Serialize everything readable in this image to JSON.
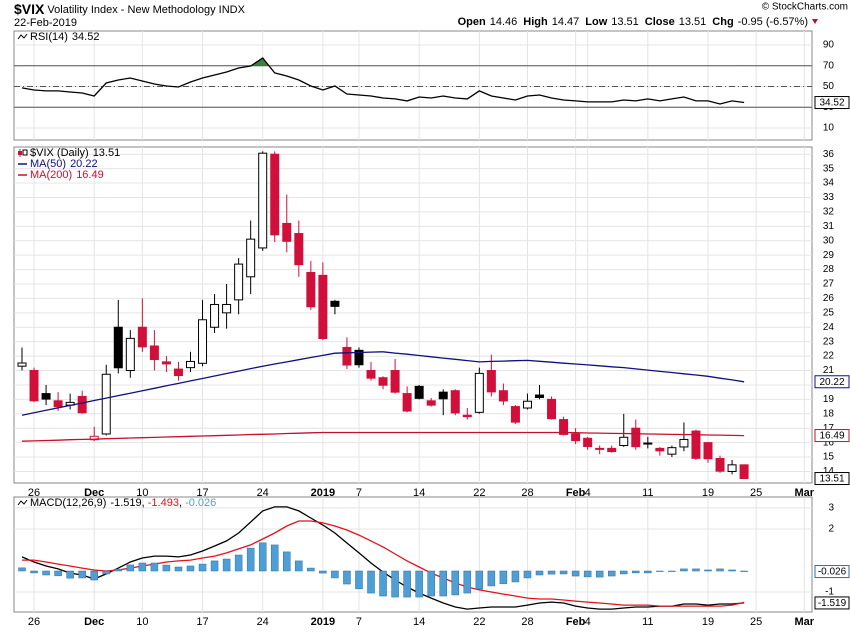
{
  "header": {
    "symbol": "$VIX",
    "name": "Volatility Index - New Methodology",
    "exchange": "INDX",
    "date": "22-Feb-2019",
    "copyright": "© StockCharts.com",
    "quote": [
      {
        "label": "Open",
        "value": "14.46"
      },
      {
        "label": "High",
        "value": "14.47"
      },
      {
        "label": "Low",
        "value": "13.51"
      },
      {
        "label": "Close",
        "value": "13.51"
      },
      {
        "label": "Chg",
        "value": "-0.95 (-6.57%)"
      }
    ]
  },
  "chart_data": [
    {
      "type": "line",
      "ylim": [
        -1.6,
        103.5
      ],
      "yticks": [
        10,
        30,
        50,
        70,
        90
      ],
      "grid": true,
      "reference_lines": [
        {
          "value": 70,
          "dash": "solid"
        },
        {
          "value": 50,
          "dash": "dashdot"
        },
        {
          "value": 30,
          "dash": "solid"
        }
      ],
      "overbought_fill": "#3e7f3e",
      "series": [
        {
          "name": "RSI(14)",
          "color": "#000000",
          "last_value_box": true,
          "values": [
            48.6,
            46.6,
            45.7,
            45.7,
            44.7,
            43.7,
            40.8,
            53.4,
            56.3,
            58.2,
            55.3,
            52.4,
            50.5,
            49.5,
            54.3,
            58.2,
            61.1,
            64.0,
            67.8,
            69.8,
            77.5,
            63.1,
            60.1,
            56.3,
            50.5,
            46.6,
            50.5,
            42.8,
            41.8,
            40.8,
            38.9,
            38.0,
            36.1,
            39.9,
            38.9,
            40.8,
            38.9,
            38.0,
            45.7,
            40.8,
            38.9,
            37.0,
            40.8,
            41.8,
            38.9,
            37.0,
            36.1,
            35.1,
            35.1,
            35.1,
            37.0,
            36.1,
            38.0,
            36.1,
            38.0,
            39.9,
            36.1,
            36.1,
            33.1,
            36.1,
            34.52
          ]
        }
      ]
    },
    {
      "type": "candlestick",
      "ylim": [
        13.2,
        36.5
      ],
      "yticks": [
        14,
        15,
        16,
        17,
        18,
        19,
        20,
        21,
        22,
        23,
        24,
        25,
        26,
        27,
        28,
        29,
        30,
        31,
        32,
        33,
        34,
        35,
        36
      ],
      "grid": true,
      "up_color": "#000000",
      "down_color": "#d0103a",
      "categories": [
        null,
        "26",
        null,
        null,
        null,
        null,
        "Dec",
        null,
        null,
        null,
        "10",
        null,
        null,
        null,
        null,
        "17",
        null,
        null,
        null,
        null,
        "24",
        null,
        null,
        null,
        null,
        "2019",
        null,
        null,
        "7",
        null,
        null,
        null,
        null,
        "14",
        null,
        null,
        null,
        null,
        "22",
        null,
        null,
        null,
        "28",
        null,
        null,
        null,
        "Feb",
        "4",
        null,
        null,
        null,
        null,
        "11",
        null,
        null,
        null,
        null,
        "19",
        null,
        null,
        null,
        "25",
        null,
        null,
        null,
        "Mar"
      ],
      "series": [
        {
          "name": "$VIX (Daily)",
          "color": "#000000",
          "last_value_box": true,
          "open": [
            21.3,
            21,
            19.4,
            18.9,
            18.6,
            19.2,
            16.2,
            16.6,
            24,
            21,
            24,
            22.7,
            21.6,
            21.1,
            21.2,
            21.5,
            24,
            25,
            25.9,
            27.5,
            29.5,
            36,
            31.2,
            30.5,
            27.8,
            27.6,
            25.8,
            22.6,
            22.4,
            21,
            20.5,
            21,
            19.4,
            19.9,
            18.9,
            19.5,
            19.6,
            17.9,
            18.1,
            21,
            19.6,
            18.5,
            18.4,
            19.3,
            19,
            17.6,
            16.6,
            16.3,
            15.6,
            15.6,
            15.8,
            17,
            15.9,
            15.6,
            15.2,
            15.7,
            16.8,
            16,
            14.9,
            14,
            14.46,
            null,
            null,
            null,
            null,
            null
          ],
          "high": [
            22.6,
            21.2,
            20,
            19.5,
            19.4,
            19.6,
            17.1,
            21.4,
            25.9,
            23.8,
            26,
            23.8,
            22,
            21.6,
            22.3,
            25.9,
            26.3,
            27,
            28.8,
            31.4,
            36.2,
            36.2,
            33.2,
            31.4,
            28.6,
            28.5,
            25.9,
            23.3,
            22.6,
            21.6,
            20.6,
            21.8,
            19.9,
            20,
            19.1,
            19.7,
            19.7,
            18.4,
            21.2,
            22.1,
            20.1,
            18.6,
            19.4,
            20,
            19.2,
            17.8,
            17,
            16.4,
            15.8,
            15.8,
            18,
            17.6,
            16.4,
            15.7,
            15.8,
            17.4,
            16.9,
            16,
            15.1,
            14.8,
            14.47,
            null,
            null,
            null,
            null,
            null
          ],
          "low": [
            21,
            18.8,
            18.6,
            18.2,
            18.3,
            18,
            16.1,
            16.5,
            20.8,
            20.5,
            22.3,
            21,
            20.9,
            20.3,
            20.9,
            21.3,
            23.6,
            23.9,
            24.9,
            26.3,
            29.3,
            29.9,
            29.2,
            27.5,
            25.2,
            23.1,
            24.9,
            21.1,
            21.2,
            20.3,
            19.7,
            19.4,
            18.1,
            19,
            18.5,
            17.9,
            17.9,
            17.6,
            18,
            19.2,
            18.6,
            17.3,
            18.3,
            19,
            17.6,
            16.5,
            15.9,
            15.5,
            15.2,
            15.3,
            15.7,
            15.5,
            15.6,
            15.1,
            15,
            15.4,
            14.8,
            14.6,
            13.9,
            13.8,
            13.51,
            null,
            null,
            null,
            null,
            null
          ],
          "close": [
            21.52,
            18.9,
            19.02,
            18.49,
            18.79,
            18.07,
            16.44,
            20.74,
            21.19,
            23.23,
            22.64,
            21.76,
            21.46,
            20.65,
            21.63,
            24.52,
            25.58,
            25.58,
            28.38,
            30.11,
            36.07,
            30.41,
            29.96,
            28.34,
            25.42,
            23.22,
            25.45,
            21.38,
            21.4,
            20.47,
            19.98,
            19.5,
            18.19,
            19.07,
            18.6,
            19.04,
            18.06,
            17.8,
            20.8,
            19.52,
            18.89,
            17.42,
            18.87,
            19.13,
            17.66,
            16.57,
            16.14,
            15.73,
            15.57,
            15.38,
            16.37,
            15.72,
            15.97,
            15.43,
            15.65,
            16.22,
            14.91,
            14.88,
            14.02,
            14.46,
            13.51,
            null,
            null,
            null,
            null,
            null
          ]
        },
        {
          "name": "MA(50)",
          "color": "#101080",
          "last_value_box": true,
          "values": [
            17.9,
            18.07,
            18.24,
            18.41,
            18.58,
            18.75,
            18.92,
            19.09,
            19.26,
            19.43,
            19.6,
            19.77,
            19.94,
            20.11,
            20.28,
            20.45,
            20.62,
            20.79,
            20.96,
            21.13,
            21.3,
            21.45,
            21.6,
            21.75,
            21.9,
            22.05,
            22.2,
            22.23,
            22.25,
            22.28,
            22.3,
            22.21,
            22.13,
            22.04,
            21.95,
            21.86,
            21.78,
            21.69,
            21.6,
            21.63,
            21.65,
            21.68,
            21.7,
            21.64,
            21.58,
            21.51,
            21.45,
            21.39,
            21.33,
            21.26,
            21.2,
            21.11,
            21.03,
            20.94,
            20.86,
            20.77,
            20.69,
            20.6,
            20.47,
            20.35,
            20.22,
            null,
            null,
            null,
            null,
            null
          ]
        },
        {
          "name": "MA(200)",
          "color": "#c8102e",
          "last_value_box": true,
          "values": [
            16.1,
            16.12,
            16.15,
            16.17,
            16.2,
            16.22,
            16.24,
            16.27,
            16.29,
            16.32,
            16.34,
            16.36,
            16.39,
            16.41,
            16.44,
            16.46,
            16.48,
            16.51,
            16.53,
            16.56,
            16.58,
            16.6,
            16.63,
            16.65,
            16.68,
            16.7,
            16.7,
            16.7,
            16.7,
            16.7,
            16.7,
            16.7,
            16.7,
            16.7,
            16.7,
            16.7,
            16.7,
            16.7,
            16.7,
            16.7,
            16.7,
            16.7,
            16.7,
            16.7,
            16.7,
            16.7,
            16.69,
            16.67,
            16.66,
            16.64,
            16.63,
            16.62,
            16.6,
            16.59,
            16.57,
            16.56,
            16.55,
            16.53,
            16.52,
            16.5,
            16.49,
            null,
            null,
            null,
            null,
            null
          ]
        }
      ]
    },
    {
      "type": "line",
      "ylim": [
        -1.95,
        3.52
      ],
      "yticks": [
        -1,
        2,
        3
      ],
      "grid": true,
      "categories": [
        null,
        "26",
        null,
        null,
        null,
        null,
        "Dec",
        null,
        null,
        null,
        "10",
        null,
        null,
        null,
        null,
        "17",
        null,
        null,
        null,
        null,
        "24",
        null,
        null,
        null,
        null,
        "2019",
        null,
        null,
        "7",
        null,
        null,
        null,
        null,
        "14",
        null,
        null,
        null,
        null,
        "22",
        null,
        null,
        null,
        "28",
        null,
        null,
        null,
        "Feb",
        "4",
        null,
        null,
        null,
        null,
        "11",
        null,
        null,
        null,
        null,
        "19",
        null,
        null,
        null,
        "25",
        null,
        null,
        null,
        "Mar"
      ],
      "series": [
        {
          "name": "MACD(12,26,9)",
          "color": "#000000",
          "last_value_box": true,
          "values": [
            0.67,
            0.43,
            0.24,
            0.1,
            -0.1,
            -0.19,
            -0.38,
            -0.14,
            0.14,
            0.43,
            0.62,
            0.71,
            0.71,
            0.67,
            0.76,
            0.95,
            1.19,
            1.43,
            1.81,
            2.33,
            2.86,
            3.05,
            3.05,
            2.86,
            2.52,
            2.19,
            1.81,
            1.33,
            0.86,
            0.38,
            -0.05,
            -0.43,
            -0.76,
            -1.05,
            -1.29,
            -1.52,
            -1.71,
            -1.81,
            -1.76,
            -1.71,
            -1.71,
            -1.71,
            -1.62,
            -1.52,
            -1.48,
            -1.52,
            -1.67,
            -1.76,
            -1.81,
            -1.81,
            -1.76,
            -1.71,
            -1.71,
            -1.67,
            -1.67,
            -1.57,
            -1.57,
            -1.62,
            -1.57,
            -1.57,
            -1.519,
            null,
            null,
            null,
            null,
            null
          ]
        },
        {
          "color": "#e8101a",
          "values": [
            0.52,
            0.52,
            0.43,
            0.33,
            0.24,
            0.14,
            0.05,
            0.0,
            0.05,
            0.14,
            0.24,
            0.33,
            0.43,
            0.48,
            0.52,
            0.62,
            0.71,
            0.86,
            1.05,
            1.24,
            1.52,
            1.81,
            2.14,
            2.38,
            2.38,
            2.29,
            2.14,
            1.95,
            1.71,
            1.43,
            1.14,
            0.81,
            0.48,
            0.19,
            -0.1,
            -0.33,
            -0.57,
            -0.76,
            -0.9,
            -1.0,
            -1.1,
            -1.19,
            -1.29,
            -1.33,
            -1.33,
            -1.38,
            -1.43,
            -1.48,
            -1.52,
            -1.57,
            -1.62,
            -1.62,
            -1.62,
            -1.67,
            -1.67,
            -1.67,
            -1.67,
            -1.67,
            -1.67,
            -1.62,
            -1.493,
            null,
            null,
            null,
            null,
            null
          ]
        },
        {
          "color": "#4f9fd6",
          "style": "histogram",
          "last_value_box": true,
          "values": [
            0.15,
            -0.09,
            -0.19,
            -0.23,
            -0.34,
            -0.33,
            -0.43,
            -0.14,
            0.09,
            0.29,
            0.38,
            0.38,
            0.28,
            0.19,
            0.24,
            0.33,
            0.48,
            0.57,
            0.76,
            1.09,
            1.34,
            1.24,
            0.91,
            0.48,
            0.14,
            -0.1,
            -0.33,
            -0.62,
            -0.85,
            -1.05,
            -1.19,
            -1.24,
            -1.24,
            -1.24,
            -1.19,
            -1.19,
            -1.14,
            -1.05,
            -0.86,
            -0.71,
            -0.61,
            -0.52,
            -0.33,
            -0.19,
            -0.15,
            -0.14,
            -0.24,
            -0.28,
            -0.29,
            -0.24,
            -0.14,
            -0.09,
            -0.09,
            0.0,
            0.0,
            0.1,
            0.1,
            0.05,
            0.1,
            0.05,
            -0.026,
            null,
            null,
            null,
            null,
            null
          ]
        }
      ]
    }
  ]
}
